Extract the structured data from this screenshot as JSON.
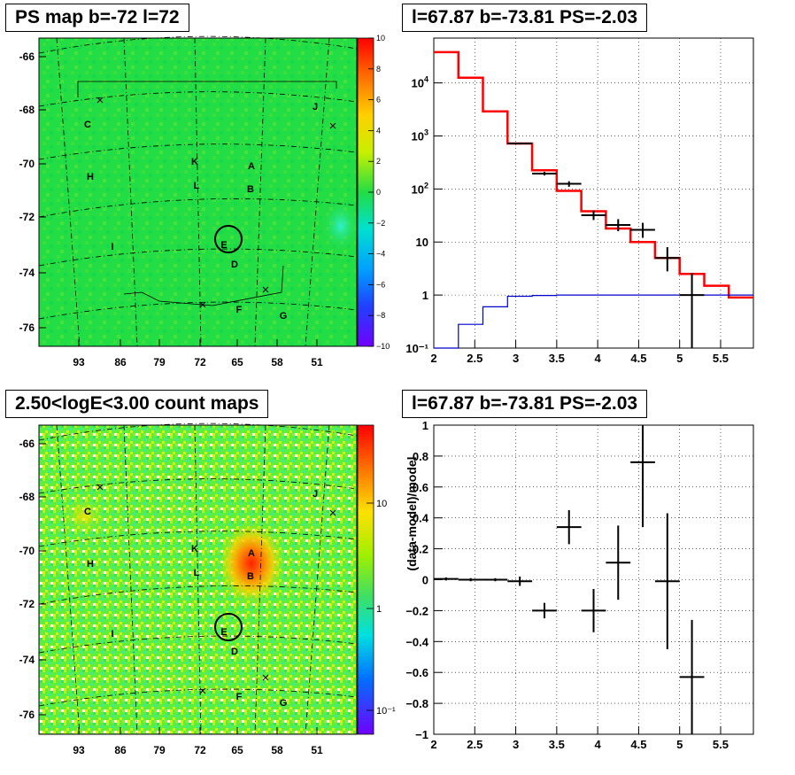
{
  "panels": {
    "top_left_title": "PS map b=-72 l=72",
    "top_right_title": "l=67.87 b=-73.81 PS=-2.03",
    "bottom_left_title": "2.50<logE<3.00 count maps",
    "bottom_right_title": "l=67.87 b=-73.81 PS=-2.03"
  },
  "colors": {
    "model_step": "#ff0000",
    "blue_curve": "#0000cc",
    "data": "#000000",
    "ps_map_base": "#22dd44",
    "count_map_base": "#5cf03c",
    "source_hot": "#ff3300"
  },
  "chart_data": [
    {
      "type": "heatmap",
      "title": "PS map b=-72 l=72",
      "x_tick_labels": [
        "93",
        "86",
        "79",
        "72",
        "65",
        "58",
        "51"
      ],
      "y_tick_labels": [
        "-66",
        "-68",
        "-70",
        "-72",
        "-74",
        "-76"
      ],
      "colorbar": {
        "scale": "linear",
        "range": [
          -10,
          10
        ],
        "tick_labels": [
          "10",
          "8",
          "6",
          "4",
          "2",
          "0",
          "−2",
          "−4",
          "−6",
          "−8",
          "−10"
        ]
      },
      "value_description_level": 0,
      "source_labels": [
        "A",
        "B",
        "C",
        "D",
        "E",
        "F",
        "G",
        "H",
        "I",
        "J",
        "K",
        "L"
      ],
      "marked_source": "E"
    },
    {
      "type": "line",
      "title": "l=67.87 b=-73.81 PS=-2.03",
      "x_tick_labels": [
        "2",
        "2.5",
        "3",
        "3.5",
        "4",
        "4.5",
        "5",
        "5.5"
      ],
      "y_tick_labels": [
        "10",
        "1",
        "10⁻¹"
      ],
      "y_pow_labels": [
        {
          "base": "10",
          "exp": "4"
        },
        {
          "base": "10",
          "exp": "3"
        },
        {
          "base": "10",
          "exp": "2"
        }
      ],
      "xlim": [
        2,
        5.9
      ],
      "ylim": [
        0.1,
        70000
      ],
      "yscale": "log",
      "model_steps": [
        {
          "x0": 2.0,
          "x1": 2.3,
          "y": 38000
        },
        {
          "x0": 2.3,
          "x1": 2.6,
          "y": 12500
        },
        {
          "x0": 2.6,
          "x1": 2.9,
          "y": 2900
        },
        {
          "x0": 2.9,
          "x1": 3.2,
          "y": 720
        },
        {
          "x0": 3.2,
          "x1": 3.5,
          "y": 225
        },
        {
          "x0": 3.5,
          "x1": 3.8,
          "y": 92
        },
        {
          "x0": 3.8,
          "x1": 4.1,
          "y": 38
        },
        {
          "x0": 4.1,
          "x1": 4.4,
          "y": 18
        },
        {
          "x0": 4.4,
          "x1": 4.7,
          "y": 10
        },
        {
          "x0": 4.7,
          "x1": 5.0,
          "y": 5
        },
        {
          "x0": 5.0,
          "x1": 5.3,
          "y": 2.5
        },
        {
          "x0": 5.3,
          "x1": 5.6,
          "y": 1.5
        },
        {
          "x0": 5.6,
          "x1": 5.9,
          "y": 0.9
        }
      ],
      "blue_steps": [
        {
          "x0": 2.0,
          "x1": 2.3,
          "y": 0.1
        },
        {
          "x0": 2.3,
          "x1": 2.6,
          "y": 0.28
        },
        {
          "x0": 2.6,
          "x1": 2.9,
          "y": 0.6
        },
        {
          "x0": 2.9,
          "x1": 3.2,
          "y": 0.95
        },
        {
          "x0": 3.2,
          "x1": 3.5,
          "y": 0.98
        },
        {
          "x0": 3.5,
          "x1": 3.8,
          "y": 1.0
        },
        {
          "x0": 3.8,
          "x1": 5.9,
          "y": 1.0
        }
      ],
      "data_points": [
        {
          "x": 3.05,
          "y": 720,
          "xerr": 0.15,
          "ylo": 690,
          "yhi": 750
        },
        {
          "x": 3.35,
          "y": 195,
          "xerr": 0.15,
          "ylo": 180,
          "yhi": 210
        },
        {
          "x": 3.65,
          "y": 125,
          "xerr": 0.15,
          "ylo": 110,
          "yhi": 140
        },
        {
          "x": 3.95,
          "y": 32,
          "xerr": 0.15,
          "ylo": 26,
          "yhi": 39
        },
        {
          "x": 4.25,
          "y": 21,
          "xerr": 0.15,
          "ylo": 16,
          "yhi": 27
        },
        {
          "x": 4.55,
          "y": 17,
          "xerr": 0.15,
          "ylo": 12,
          "yhi": 23
        },
        {
          "x": 4.85,
          "y": 5,
          "xerr": 0.15,
          "ylo": 2.8,
          "yhi": 8
        },
        {
          "x": 5.15,
          "y": 1.0,
          "xerr": 0.15,
          "ylo": 0.1,
          "yhi": 2.6
        }
      ]
    },
    {
      "type": "heatmap",
      "title": "2.50<logE<3.00 count maps",
      "x_tick_labels": [
        "93",
        "86",
        "79",
        "72",
        "65",
        "58",
        "51"
      ],
      "y_tick_labels": [
        "-66",
        "-68",
        "-70",
        "-72",
        "-74",
        "-76"
      ],
      "colorbar": {
        "scale": "log",
        "tick_labels": [
          "10",
          "1",
          "10⁻¹"
        ]
      },
      "source_labels": [
        "A",
        "B",
        "C",
        "D",
        "E",
        "F",
        "G",
        "H",
        "I",
        "J",
        "K",
        "L"
      ],
      "marked_source": "E"
    },
    {
      "type": "scatter",
      "title": "l=67.87 b=-73.81 PS=-2.03",
      "ylabel": "(data-model)/model",
      "x_tick_labels": [
        "2",
        "2.5",
        "3",
        "3.5",
        "4",
        "4.5",
        "5",
        "5.5"
      ],
      "y_tick_labels": [
        "1",
        "0.8",
        "0.6",
        "0.4",
        "0.2",
        "0",
        "−0.2",
        "−0.4",
        "−0.6",
        "−0.8",
        "−1"
      ],
      "xlim": [
        2,
        5.9
      ],
      "ylim": [
        -1,
        1
      ],
      "points": [
        {
          "x": 2.15,
          "y": 0.005,
          "xerr": 0.15,
          "yerr": 0.01
        },
        {
          "x": 2.45,
          "y": 0.0,
          "xerr": 0.15,
          "yerr": 0.01
        },
        {
          "x": 2.75,
          "y": 0.0,
          "xerr": 0.15,
          "yerr": 0.01
        },
        {
          "x": 3.05,
          "y": -0.01,
          "xerr": 0.15,
          "yerr": 0.03
        },
        {
          "x": 3.35,
          "y": -0.2,
          "xerr": 0.15,
          "yerr": 0.05
        },
        {
          "x": 3.65,
          "y": 0.34,
          "xerr": 0.15,
          "yerr": 0.11
        },
        {
          "x": 3.95,
          "y": -0.2,
          "xerr": 0.15,
          "yerr": 0.14
        },
        {
          "x": 4.25,
          "y": 0.11,
          "xerr": 0.15,
          "yerr": 0.24
        },
        {
          "x": 4.55,
          "y": 0.76,
          "xerr": 0.15,
          "yerr": 0.42
        },
        {
          "x": 4.85,
          "y": -0.01,
          "xerr": 0.15,
          "yerr": 0.44
        },
        {
          "x": 5.15,
          "y": -0.63,
          "xerr": 0.15,
          "yerr": 0.37
        }
      ]
    }
  ]
}
